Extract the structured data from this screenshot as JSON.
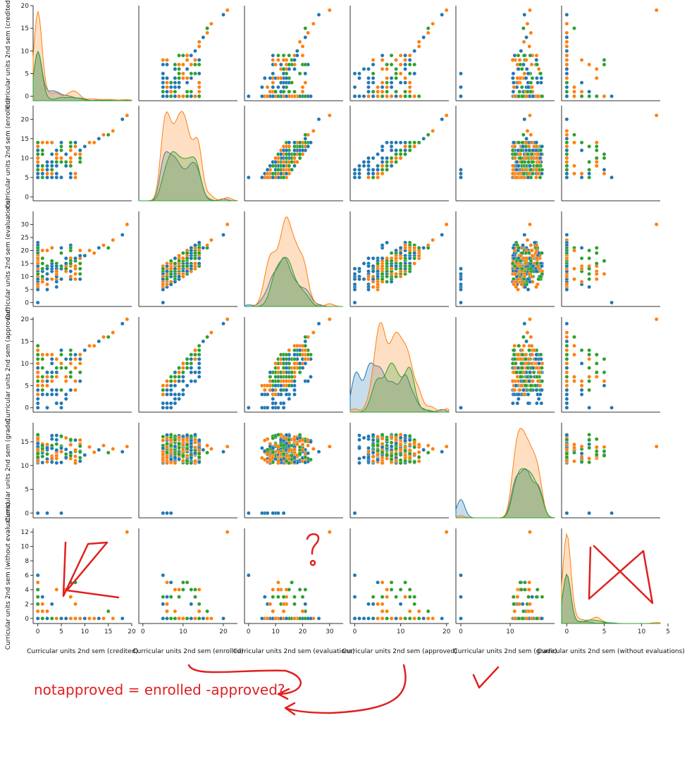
{
  "chart_data": {
    "type": "scatter",
    "kind": "pairplot",
    "colors": [
      "#1f77b4",
      "#ff7f0e",
      "#2ca02c"
    ],
    "legend": "none",
    "grid": false,
    "variables": [
      {
        "label": "Curricular units 2nd sem (credited)",
        "range": [
          -1,
          20
        ],
        "ticks": [
          0,
          5,
          10,
          15,
          20
        ]
      },
      {
        "label": "Curricular units 2nd sem (enrolled)",
        "range": [
          -1,
          23.5
        ],
        "ticks": [
          0,
          5,
          10,
          15,
          20
        ]
      },
      {
        "label": "Curricular units 2nd sem (evaluations)",
        "range": [
          -1.5,
          35
        ],
        "ticks": [
          0,
          5,
          10,
          15,
          20,
          25,
          30
        ]
      },
      {
        "label": "Curricular units 2nd sem (approved)",
        "range": [
          -1,
          20.5
        ],
        "ticks": [
          0,
          5,
          10,
          15,
          20
        ]
      },
      {
        "label": "Curricular units 2nd sem (grade)",
        "range": [
          -1,
          19
        ],
        "ticks": [
          0,
          5,
          10,
          15,
          20
        ]
      },
      {
        "label": "Curricular units 2nd sem (without evaluations)",
        "range": [
          -0.7,
          12.5
        ],
        "ticks": [
          0,
          2,
          4,
          6,
          8,
          10,
          12
        ]
      }
    ],
    "xticks": [
      [
        0,
        5,
        10,
        15,
        20
      ],
      [
        0,
        10,
        20
      ],
      [
        0,
        10,
        20,
        30
      ],
      [
        0,
        10,
        20
      ],
      [
        0,
        10,
        20
      ],
      [
        0,
        5,
        10
      ]
    ],
    "trailing_xtick": "5",
    "samples": {
      "credited": [
        0,
        0,
        0,
        0,
        0,
        0,
        0,
        0,
        0,
        0,
        0,
        0,
        1,
        1,
        1,
        1,
        2,
        2,
        2,
        3,
        3,
        4,
        5,
        5,
        6,
        7,
        8,
        9,
        10,
        11,
        12,
        13,
        14,
        15,
        16,
        18,
        19
      ],
      "enrolled": [
        6,
        6,
        5,
        6,
        7,
        6,
        5,
        8,
        6,
        6,
        7,
        5,
        6,
        7,
        8,
        6,
        7,
        8,
        9,
        6,
        8,
        8,
        9,
        10,
        11,
        12,
        11,
        12,
        13,
        14,
        14,
        15,
        16,
        16,
        17,
        20,
        21
      ],
      "evaluations": [
        8,
        7,
        6,
        9,
        10,
        8,
        7,
        12,
        6,
        8,
        11,
        0,
        9,
        10,
        12,
        8,
        11,
        13,
        14,
        9,
        12,
        12,
        13,
        14,
        15,
        17,
        16,
        17,
        18,
        20,
        19,
        21,
        22,
        21,
        24,
        26,
        30
      ],
      "approved": [
        5,
        0,
        5,
        6,
        6,
        4,
        3,
        7,
        0,
        6,
        5,
        0,
        6,
        6,
        7,
        5,
        7,
        7,
        8,
        6,
        8,
        8,
        9,
        10,
        11,
        12,
        11,
        12,
        13,
        14,
        14,
        15,
        16,
        16,
        17,
        19,
        20
      ],
      "grade": [
        12.5,
        0,
        12.8,
        13.2,
        12.1,
        11.8,
        11.4,
        14.0,
        0,
        12.9,
        12.2,
        0,
        13.5,
        12.7,
        13.1,
        11.9,
        13.3,
        13.8,
        12.4,
        12.0,
        13.6,
        12.3,
        14.1,
        12.9,
        13.4,
        12.6,
        13.0,
        14.5,
        12.2,
        13.9,
        12.8,
        13.3,
        14.2,
        12.7,
        13.5,
        12.9,
        14.0
      ],
      "without_evaluations": [
        0,
        0,
        0,
        1,
        0,
        0,
        2,
        0,
        3,
        0,
        0,
        6,
        1,
        0,
        0,
        2,
        0,
        1,
        0,
        0,
        0,
        4,
        0,
        0,
        0,
        0,
        5,
        0,
        0,
        0,
        0,
        0,
        0,
        1,
        0,
        0,
        12
      ]
    },
    "sample_series": [
      0,
      1,
      1,
      0,
      2,
      1,
      0,
      1,
      0,
      1,
      2,
      0,
      1,
      0,
      2,
      1,
      0,
      1,
      2,
      1,
      0,
      1,
      2,
      1,
      0,
      1,
      2,
      1,
      0,
      1,
      1,
      0,
      1,
      2,
      1,
      0,
      1
    ]
  },
  "annotations": {
    "note": "notapproved = enrolled -approved?",
    "question_mark": "?"
  }
}
